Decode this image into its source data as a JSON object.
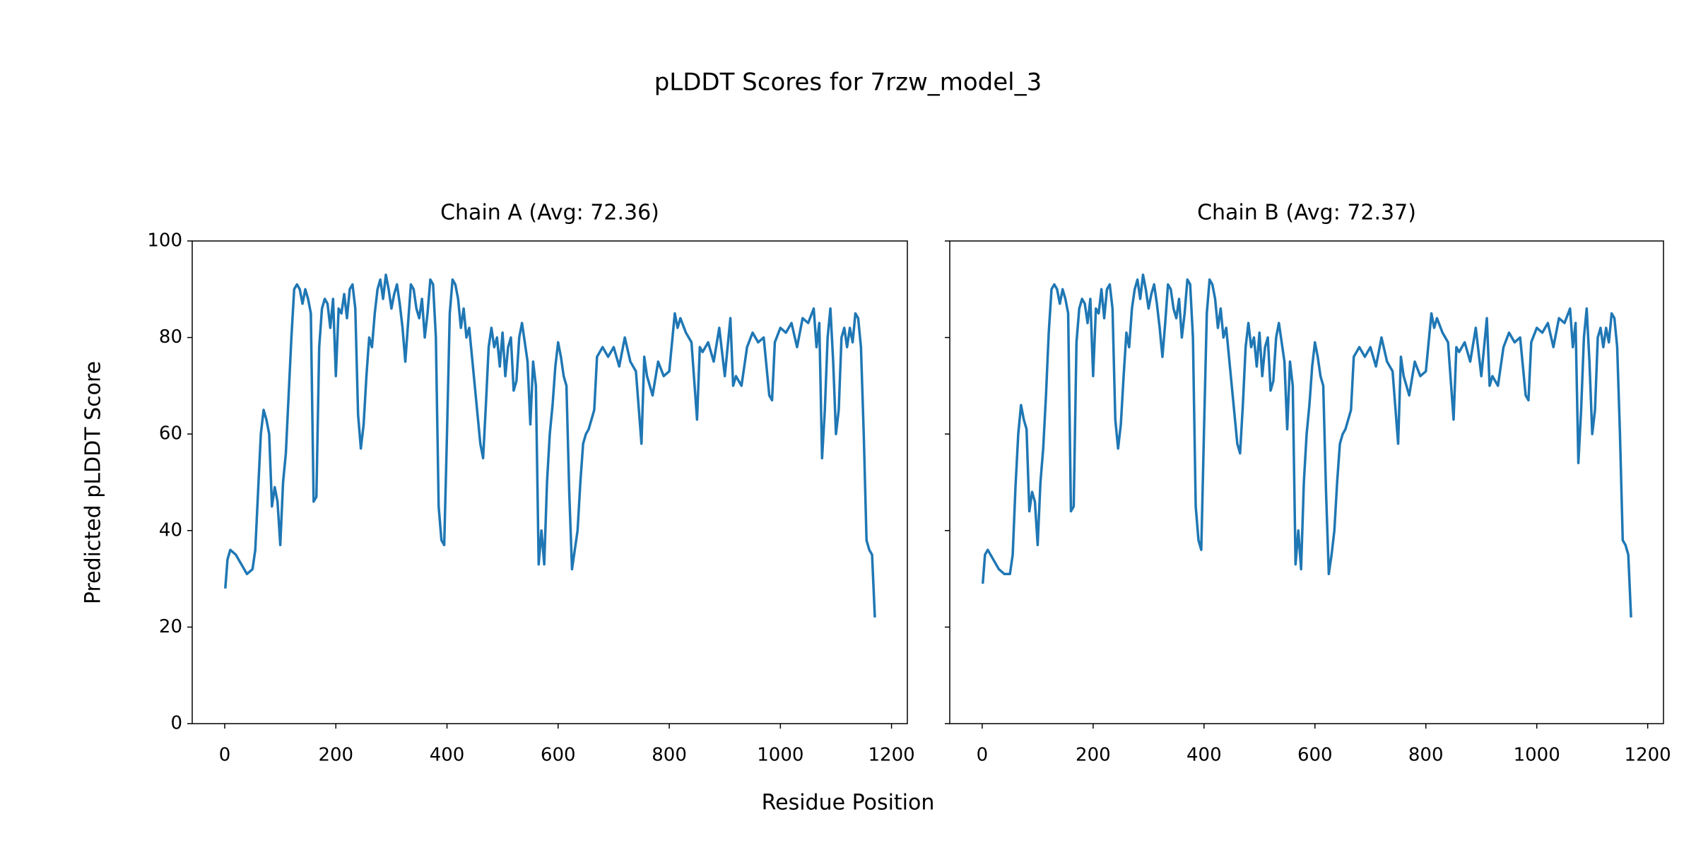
{
  "figure": {
    "title": "pLDDT Scores for 7rzw_model_3",
    "x_label": "Residue Position",
    "y_label": "Predicted pLDDT Score",
    "sharey": true
  },
  "chart_data": [
    {
      "type": "line",
      "title": "Chain A (Avg: 72.36)",
      "x": [
        1,
        5,
        10,
        20,
        30,
        40,
        50,
        55,
        60,
        65,
        70,
        75,
        80,
        85,
        90,
        95,
        100,
        105,
        110,
        115,
        120,
        125,
        130,
        135,
        140,
        145,
        150,
        155,
        160,
        165,
        170,
        175,
        180,
        185,
        190,
        195,
        200,
        205,
        210,
        215,
        220,
        225,
        230,
        235,
        240,
        245,
        250,
        255,
        260,
        265,
        270,
        275,
        280,
        285,
        290,
        295,
        300,
        305,
        310,
        315,
        320,
        325,
        330,
        335,
        340,
        345,
        350,
        355,
        360,
        365,
        370,
        375,
        380,
        385,
        390,
        395,
        400,
        405,
        410,
        415,
        420,
        425,
        430,
        435,
        440,
        445,
        450,
        455,
        460,
        465,
        470,
        475,
        480,
        485,
        490,
        495,
        500,
        505,
        510,
        515,
        520,
        525,
        530,
        535,
        540,
        545,
        550,
        555,
        560,
        565,
        570,
        575,
        580,
        585,
        590,
        595,
        600,
        605,
        610,
        615,
        620,
        625,
        630,
        635,
        640,
        645,
        650,
        655,
        660,
        665,
        670,
        675,
        680,
        690,
        700,
        710,
        720,
        730,
        740,
        750,
        755,
        760,
        770,
        780,
        790,
        800,
        810,
        815,
        820,
        830,
        840,
        850,
        855,
        860,
        870,
        880,
        890,
        900,
        905,
        910,
        915,
        920,
        930,
        940,
        950,
        960,
        970,
        980,
        985,
        990,
        1000,
        1010,
        1020,
        1030,
        1040,
        1050,
        1060,
        1065,
        1070,
        1075,
        1080,
        1085,
        1090,
        1095,
        1100,
        1105,
        1110,
        1115,
        1120,
        1125,
        1130,
        1135,
        1140,
        1145,
        1150,
        1155,
        1160,
        1165,
        1170
      ],
      "series": [
        {
          "name": "Chain A",
          "color": "#1f77b4",
          "values": [
            28,
            34,
            36,
            35,
            33,
            31,
            32,
            36,
            48,
            60,
            65,
            63,
            60,
            45,
            49,
            46,
            37,
            50,
            56,
            68,
            80,
            90,
            91,
            90,
            87,
            90,
            88,
            85,
            46,
            47,
            78,
            86,
            88,
            87,
            82,
            88,
            72,
            86,
            85,
            89,
            84,
            90,
            91,
            86,
            64,
            57,
            62,
            72,
            80,
            78,
            85,
            90,
            92,
            88,
            93,
            90,
            86,
            89,
            91,
            87,
            82,
            75,
            83,
            91,
            90,
            86,
            84,
            88,
            80,
            85,
            92,
            91,
            80,
            45,
            38,
            37,
            60,
            85,
            92,
            91,
            88,
            82,
            86,
            80,
            82,
            76,
            70,
            64,
            58,
            55,
            66,
            78,
            82,
            78,
            80,
            74,
            81,
            72,
            78,
            80,
            69,
            71,
            80,
            83,
            79,
            75,
            62,
            75,
            70,
            33,
            40,
            33,
            50,
            60,
            66,
            74,
            79,
            76,
            72,
            70,
            48,
            32,
            36,
            40,
            50,
            58,
            60,
            61,
            63,
            65,
            76,
            77,
            78,
            76,
            78,
            74,
            80,
            75,
            73,
            58,
            76,
            72,
            68,
            75,
            72,
            73,
            85,
            82,
            84,
            81,
            79,
            63,
            78,
            77,
            79,
            75,
            82,
            72,
            78,
            84,
            70,
            72,
            70,
            78,
            81,
            79,
            80,
            68,
            67,
            79,
            82,
            81,
            83,
            78,
            84,
            83,
            86,
            78,
            83,
            55,
            65,
            80,
            86,
            75,
            60,
            65,
            80,
            82,
            78,
            82,
            79,
            85,
            84,
            78,
            60,
            38,
            36,
            35,
            22
          ]
        }
      ],
      "xlim": [
        -58.5,
        1228.5
      ],
      "xticks": [
        0,
        200,
        400,
        600,
        800,
        1000,
        1200
      ],
      "ylim": [
        0,
        100
      ],
      "yticks": [
        0,
        20,
        40,
        60,
        80,
        100
      ]
    },
    {
      "type": "line",
      "title": "Chain B (Avg: 72.37)",
      "x": [
        1,
        5,
        10,
        20,
        30,
        40,
        50,
        55,
        60,
        65,
        70,
        75,
        80,
        85,
        90,
        95,
        100,
        105,
        110,
        115,
        120,
        125,
        130,
        135,
        140,
        145,
        150,
        155,
        160,
        165,
        170,
        175,
        180,
        185,
        190,
        195,
        200,
        205,
        210,
        215,
        220,
        225,
        230,
        235,
        240,
        245,
        250,
        255,
        260,
        265,
        270,
        275,
        280,
        285,
        290,
        295,
        300,
        305,
        310,
        315,
        320,
        325,
        330,
        335,
        340,
        345,
        350,
        355,
        360,
        365,
        370,
        375,
        380,
        385,
        390,
        395,
        400,
        405,
        410,
        415,
        420,
        425,
        430,
        435,
        440,
        445,
        450,
        455,
        460,
        465,
        470,
        475,
        480,
        485,
        490,
        495,
        500,
        505,
        510,
        515,
        520,
        525,
        530,
        535,
        540,
        545,
        550,
        555,
        560,
        565,
        570,
        575,
        580,
        585,
        590,
        595,
        600,
        605,
        610,
        615,
        620,
        625,
        630,
        635,
        640,
        645,
        650,
        655,
        660,
        665,
        670,
        675,
        680,
        690,
        700,
        710,
        720,
        730,
        740,
        750,
        755,
        760,
        770,
        780,
        790,
        800,
        810,
        815,
        820,
        830,
        840,
        850,
        855,
        860,
        870,
        880,
        890,
        900,
        905,
        910,
        915,
        920,
        930,
        940,
        950,
        960,
        970,
        980,
        985,
        990,
        1000,
        1010,
        1020,
        1030,
        1040,
        1050,
        1060,
        1065,
        1070,
        1075,
        1080,
        1085,
        1090,
        1095,
        1100,
        1105,
        1110,
        1115,
        1120,
        1125,
        1130,
        1135,
        1140,
        1145,
        1150,
        1155,
        1160,
        1165,
        1170
      ],
      "series": [
        {
          "name": "Chain B",
          "color": "#1f77b4",
          "values": [
            29,
            35,
            36,
            34,
            32,
            31,
            31,
            35,
            49,
            60,
            66,
            63,
            61,
            44,
            48,
            46,
            37,
            50,
            57,
            68,
            81,
            90,
            91,
            90,
            87,
            90,
            88,
            85,
            44,
            45,
            79,
            86,
            88,
            87,
            83,
            88,
            72,
            86,
            85,
            90,
            84,
            90,
            91,
            86,
            63,
            57,
            62,
            72,
            81,
            78,
            86,
            90,
            92,
            88,
            93,
            90,
            86,
            89,
            91,
            87,
            82,
            76,
            83,
            91,
            90,
            86,
            84,
            88,
            80,
            85,
            92,
            91,
            80,
            45,
            38,
            36,
            61,
            85,
            92,
            91,
            88,
            82,
            86,
            80,
            82,
            76,
            70,
            64,
            58,
            56,
            66,
            78,
            83,
            78,
            80,
            74,
            81,
            72,
            78,
            80,
            69,
            71,
            80,
            83,
            79,
            75,
            61,
            75,
            70,
            33,
            40,
            32,
            50,
            60,
            66,
            74,
            79,
            76,
            72,
            70,
            48,
            31,
            35,
            40,
            50,
            58,
            60,
            61,
            63,
            65,
            76,
            77,
            78,
            76,
            78,
            74,
            80,
            75,
            73,
            58,
            76,
            72,
            68,
            75,
            72,
            73,
            85,
            82,
            84,
            81,
            79,
            63,
            78,
            77,
            79,
            75,
            82,
            72,
            78,
            84,
            70,
            72,
            70,
            78,
            81,
            79,
            80,
            68,
            67,
            79,
            82,
            81,
            83,
            78,
            84,
            83,
            86,
            78,
            83,
            54,
            65,
            80,
            86,
            75,
            60,
            65,
            80,
            82,
            78,
            82,
            79,
            85,
            84,
            78,
            60,
            38,
            37,
            35,
            22
          ]
        }
      ],
      "xlim": [
        -58.5,
        1228.5
      ],
      "xticks": [
        0,
        200,
        400,
        600,
        800,
        1000,
        1200
      ],
      "ylim": [
        0,
        100
      ],
      "yticks": [
        0,
        20,
        40,
        60,
        80,
        100
      ]
    }
  ]
}
